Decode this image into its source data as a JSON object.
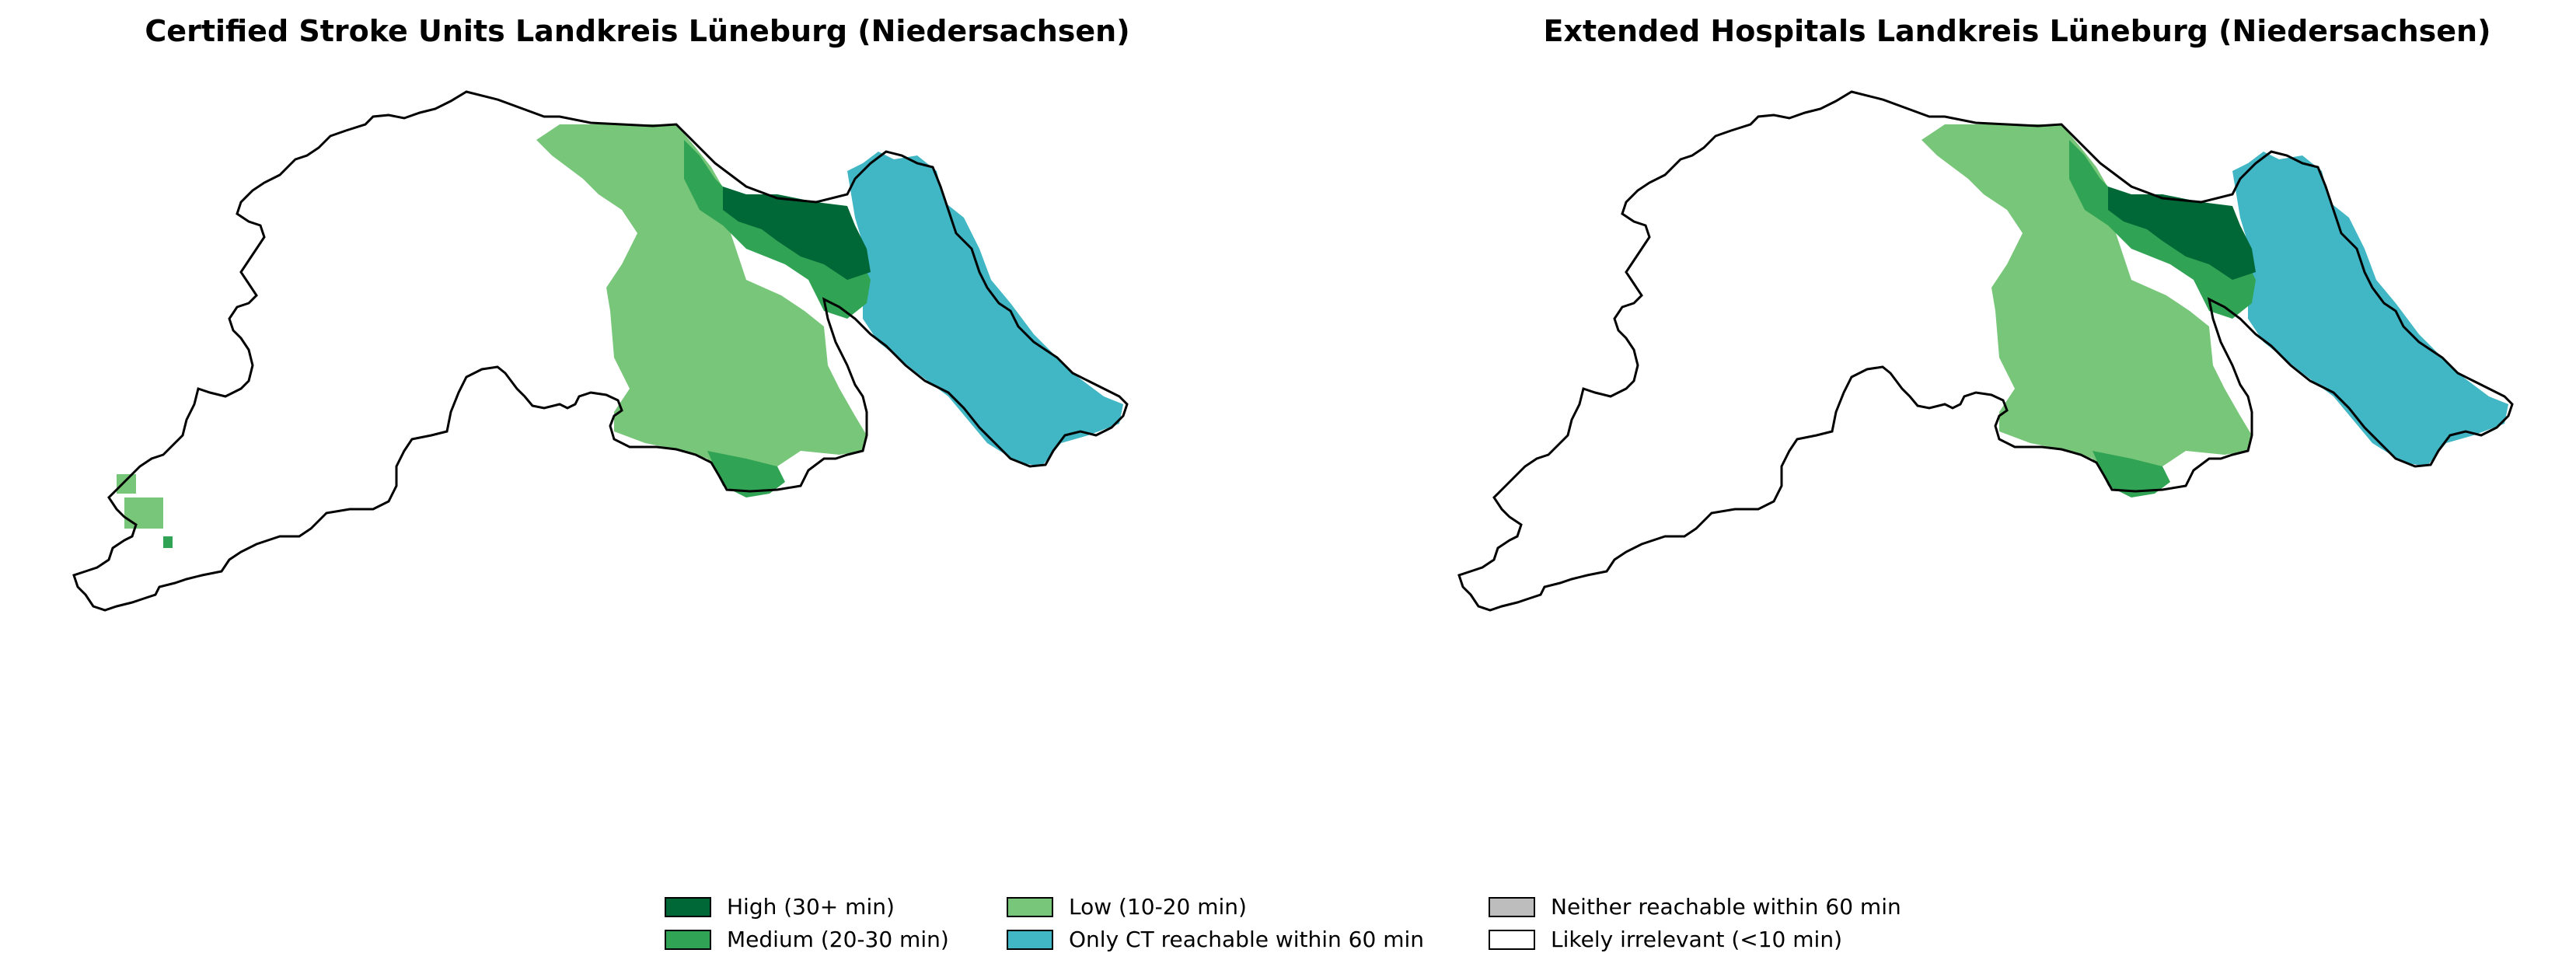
{
  "titles": {
    "left": "Certified Stroke Units Landkreis Lüneburg (Niedersachsen)",
    "right": "Extended Hospitals Landkreis Lüneburg (Niedersachsen)"
  },
  "legend": [
    {
      "label": "High (30+ min)",
      "color": "#006837"
    },
    {
      "label": "Medium (20-30 min)",
      "color": "#31a354"
    },
    {
      "label": "Low (10-20 min)",
      "color": "#78c679"
    },
    {
      "label": "Only CT reachable within 60 min",
      "color": "#41b6c4"
    },
    {
      "label": "Neither reachable within 60 min",
      "color": "#bdbdbd"
    },
    {
      "label": "Likely irrelevant (<10 min)",
      "color": "#ffffff"
    }
  ],
  "colors": {
    "high": "#006837",
    "medium": "#31a354",
    "low": "#78c679",
    "ct": "#41b6c4",
    "outline": "#000000"
  }
}
